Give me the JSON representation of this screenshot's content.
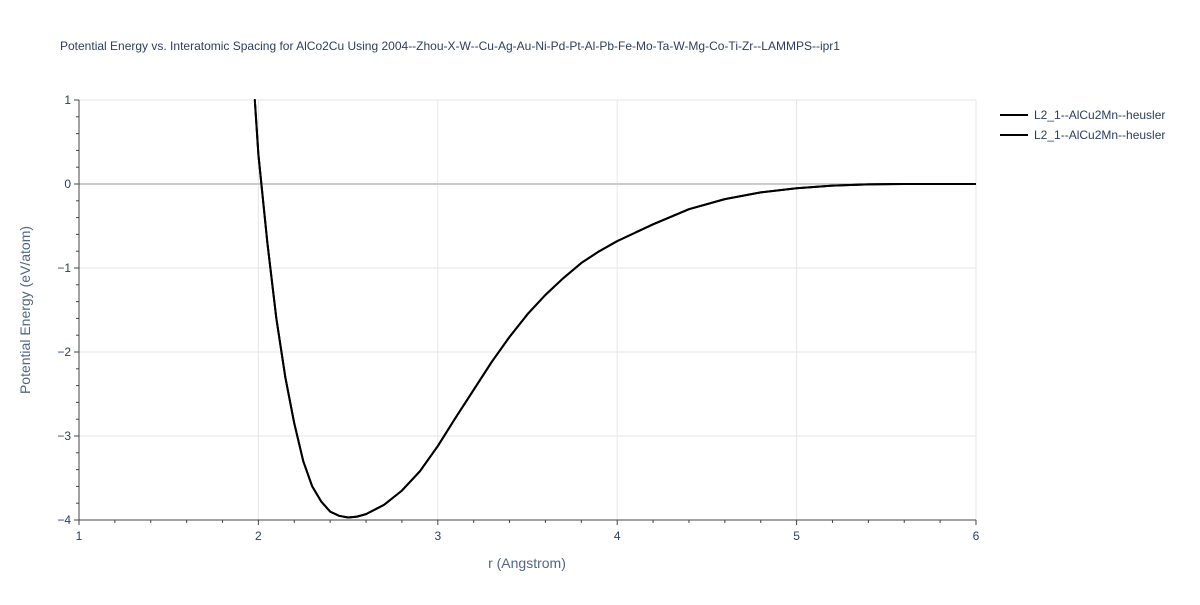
{
  "chart_data": {
    "type": "line",
    "title": "Potential Energy vs. Interatomic Spacing for AlCo2Cu Using 2004--Zhou-X-W--Cu-Ag-Au-Ni-Pd-Pt-Al-Pb-Fe-Mo-Ta-W-Mg-Co-Ti-Zr--LAMMPS--ipr1",
    "xlabel": "r (Angstrom)",
    "ylabel": "Potential Energy (eV/atom)",
    "xlim": [
      1,
      6
    ],
    "ylim": [
      -4,
      1
    ],
    "xticks": [
      1,
      2,
      3,
      4,
      5,
      6
    ],
    "xtick_labels": [
      "1",
      "2",
      "3",
      "4",
      "5",
      "6"
    ],
    "yticks": [
      1,
      0,
      -1,
      -2,
      -3,
      -4
    ],
    "ytick_labels": [
      "1",
      "0",
      "−1",
      "−2",
      "−3",
      "−4"
    ],
    "grid": true,
    "legend_position": "top-right",
    "series": [
      {
        "name": "L2_1--AlCu2Mn--heusler",
        "color": "#000000",
        "x": [
          1.98,
          2.0,
          2.05,
          2.1,
          2.15,
          2.2,
          2.25,
          2.3,
          2.35,
          2.4,
          2.45,
          2.5,
          2.55,
          2.6,
          2.7,
          2.8,
          2.9,
          3.0,
          3.1,
          3.2,
          3.3,
          3.4,
          3.5,
          3.6,
          3.7,
          3.8,
          3.9,
          4.0,
          4.2,
          4.4,
          4.6,
          4.8,
          5.0,
          5.2,
          5.4,
          5.6,
          5.8,
          6.0
        ],
        "y": [
          1.0,
          0.35,
          -0.7,
          -1.6,
          -2.3,
          -2.85,
          -3.3,
          -3.6,
          -3.78,
          -3.9,
          -3.95,
          -3.97,
          -3.96,
          -3.93,
          -3.82,
          -3.65,
          -3.42,
          -3.12,
          -2.78,
          -2.45,
          -2.12,
          -1.82,
          -1.55,
          -1.32,
          -1.12,
          -0.94,
          -0.8,
          -0.68,
          -0.48,
          -0.3,
          -0.18,
          -0.1,
          -0.05,
          -0.02,
          -0.005,
          0.0,
          0.0,
          0.0
        ]
      },
      {
        "name": "L2_1--AlCu2Mn--heusler",
        "color": "#000000",
        "x": [
          1.98,
          2.0,
          2.05,
          2.1,
          2.15,
          2.2,
          2.25,
          2.3,
          2.35,
          2.4,
          2.45,
          2.5,
          2.55,
          2.6,
          2.7,
          2.8,
          2.9,
          3.0,
          3.1,
          3.2,
          3.3,
          3.4,
          3.5,
          3.6,
          3.7,
          3.8,
          3.9,
          4.0,
          4.2,
          4.4,
          4.6,
          4.8,
          5.0,
          5.2,
          5.4,
          5.6,
          5.8,
          6.0
        ],
        "y": [
          1.0,
          0.35,
          -0.7,
          -1.6,
          -2.3,
          -2.85,
          -3.3,
          -3.6,
          -3.78,
          -3.9,
          -3.95,
          -3.97,
          -3.96,
          -3.93,
          -3.82,
          -3.65,
          -3.42,
          -3.12,
          -2.78,
          -2.45,
          -2.12,
          -1.82,
          -1.55,
          -1.32,
          -1.12,
          -0.94,
          -0.8,
          -0.68,
          -0.48,
          -0.3,
          -0.18,
          -0.1,
          -0.05,
          -0.02,
          -0.005,
          0.0,
          0.0,
          0.0
        ]
      }
    ]
  },
  "colors": {
    "text": "#2a3f5f",
    "axis_title": "#506784",
    "grid": "#e6e6e6",
    "zeroline": "#cccccc",
    "axis_line": "#444444",
    "background": "#ffffff"
  }
}
